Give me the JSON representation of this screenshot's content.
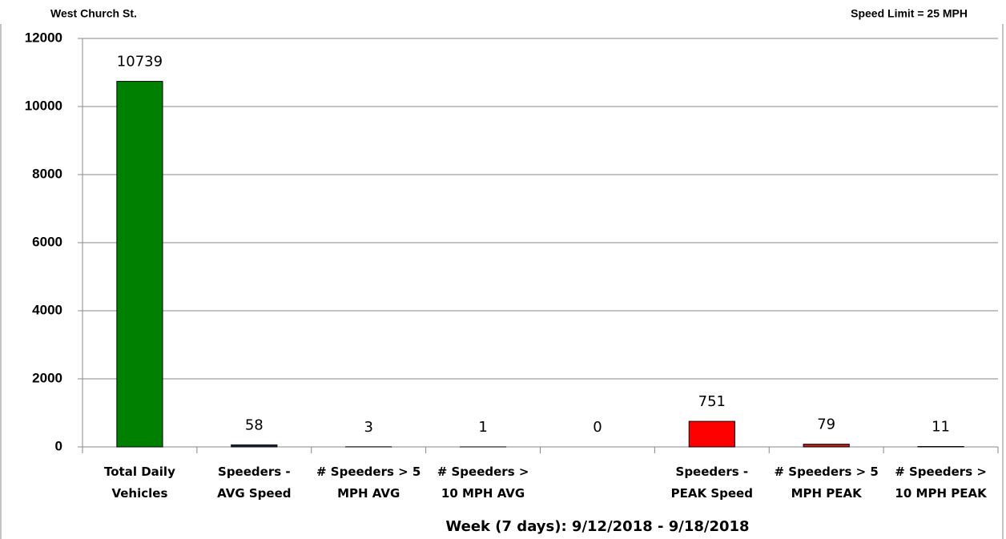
{
  "chart_data": {
    "type": "bar",
    "title": "West Church St.",
    "subtitle": "Speed Limit = 25 MPH",
    "x_label": "Week (7 days): 9/12/2018 - 9/18/2018",
    "categories": [
      "Total Daily\nVehicles",
      "Speeders -\nAVG Speed",
      "# Speeders > 5\nMPH AVG",
      "# Speeders >\n10 MPH AVG",
      null,
      "Speeders -\nPEAK Speed",
      "# Speeders > 5\nMPH PEAK",
      "# Speeders >\n10 MPH PEAK"
    ],
    "values": [
      10739,
      58,
      3,
      1,
      0,
      751,
      79,
      11
    ],
    "colors": [
      "#008000",
      "#1f2a50",
      "#1f2a50",
      "#1f2a50",
      "#1f2a50",
      "#ff0000",
      "#c0201a",
      "#1f2a50"
    ],
    "ylim": [
      0,
      12000
    ],
    "yticks": [
      0,
      2000,
      4000,
      6000,
      8000,
      10000,
      12000
    ],
    "grid": true
  }
}
